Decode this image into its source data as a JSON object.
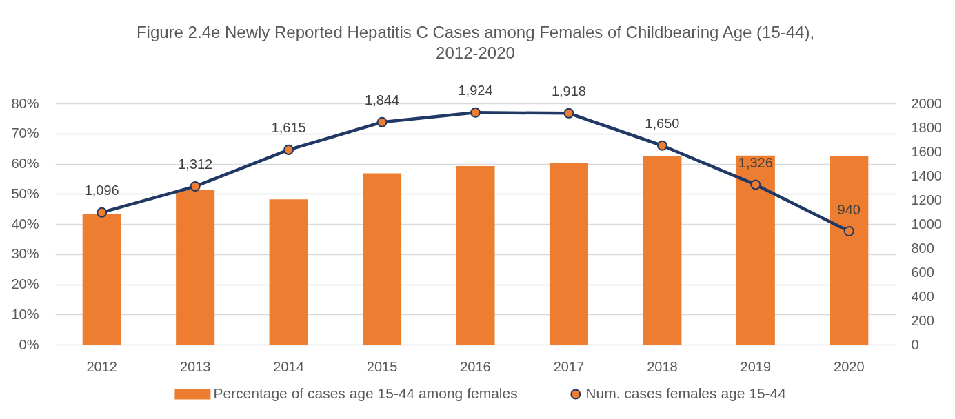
{
  "chart_data": {
    "type": "bar",
    "title": "Figure 2.4e Newly Reported Hepatitis C Cases among Females of Childbearing Age (15-44), 2012-2020",
    "categories": [
      "2012",
      "2013",
      "2014",
      "2015",
      "2016",
      "2017",
      "2018",
      "2019",
      "2020"
    ],
    "series": [
      {
        "name": "Percentage of cases age 15-44 among females",
        "color": "#ed7d31",
        "values": [
          43.4,
          51.3,
          48.2,
          56.8,
          59.2,
          60.1,
          62.6,
          62.7,
          62.6
        ]
      },
      {
        "name": "Num. cases females age 15-44",
        "type": "line",
        "axis": "y2",
        "color": "#203864",
        "values": [
          1096,
          1312,
          1615,
          1844,
          1924,
          1918,
          1650,
          1326,
          940
        ],
        "value_labels": [
          "1,096",
          "1,312",
          "1,615",
          "1,844",
          "1,924",
          "1,918",
          "1,650",
          "1,326",
          "940"
        ]
      }
    ],
    "ylim": [
      0,
      80
    ],
    "yticks": [
      {
        "value": 0,
        "label": "0%"
      },
      {
        "value": 10,
        "label": "10%"
      },
      {
        "value": 20,
        "label": "20%"
      },
      {
        "value": 30,
        "label": "30%"
      },
      {
        "value": 40,
        "label": "40%"
      },
      {
        "value": 50,
        "label": "50%"
      },
      {
        "value": 60,
        "label": "60%"
      },
      {
        "value": 70,
        "label": "70%"
      },
      {
        "value": 80,
        "label": "80%"
      }
    ],
    "y2lim": [
      0,
      2000
    ],
    "y2ticks": [
      0,
      200,
      400,
      600,
      800,
      1000,
      1200,
      1400,
      1600,
      1800,
      2000
    ],
    "grid": "y",
    "legend": "bottom",
    "marker": "circle",
    "line_style": "solid"
  }
}
